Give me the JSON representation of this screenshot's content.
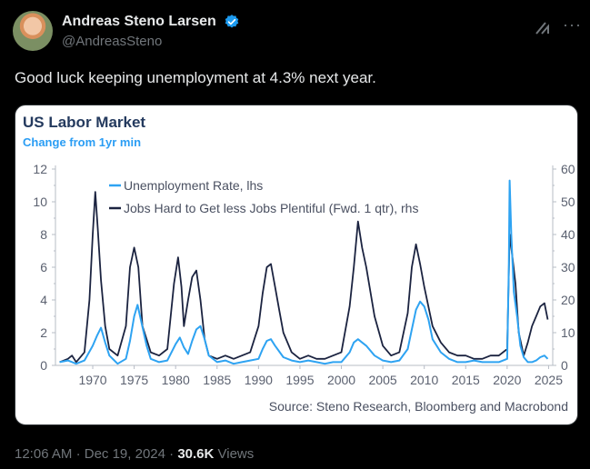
{
  "author": {
    "name": "Andreas Steno Larsen",
    "handle": "@AndreasSteno"
  },
  "tweet": {
    "text": "Good luck keeping unemployment at 4.3% next year."
  },
  "meta": {
    "time": "12:06 AM",
    "date": "Dec 19, 2024",
    "views_count": "30.6K",
    "views_label": "Views"
  },
  "icons": {
    "verified": "verified-badge-icon",
    "grok": "grok-icon",
    "more": "more-icon"
  },
  "colors": {
    "accent": "#1d9bf0",
    "unemployment": "#2ea3f2",
    "jobs": "#1b2340"
  },
  "chart_data": {
    "type": "line",
    "title": "US Labor Market",
    "subtitle": "Change from 1yr min",
    "source": "Source: Steno Research, Bloomberg and Macrobond",
    "x_ticks": [
      "1970",
      "1975",
      "1980",
      "1985",
      "1990",
      "1995",
      "2000",
      "2005",
      "2010",
      "2015",
      "2020",
      "2025"
    ],
    "xlim": [
      1965.5,
      2025.5
    ],
    "ylim_left": [
      0,
      12
    ],
    "ylim_right": [
      0,
      60
    ],
    "left_ticks": [
      "0",
      "2",
      "4",
      "6",
      "8",
      "10",
      "12"
    ],
    "right_ticks": [
      "0",
      "10",
      "20",
      "30",
      "40",
      "50",
      "60"
    ],
    "grid": false,
    "legend_position": "top-left",
    "series": [
      {
        "name": "Unemployment Rate, lhs",
        "axis": "left",
        "points": [
          [
            1966.0,
            0.2
          ],
          [
            1967.0,
            0.3
          ],
          [
            1968.0,
            0.1
          ],
          [
            1969.0,
            0.3
          ],
          [
            1970.0,
            1.2
          ],
          [
            1970.5,
            1.8
          ],
          [
            1971.0,
            2.3
          ],
          [
            1971.5,
            1.4
          ],
          [
            1972.0,
            0.6
          ],
          [
            1973.0,
            0.1
          ],
          [
            1974.0,
            0.4
          ],
          [
            1974.5,
            1.5
          ],
          [
            1975.0,
            3.0
          ],
          [
            1975.4,
            3.7
          ],
          [
            1975.8,
            2.8
          ],
          [
            1976.5,
            1.2
          ],
          [
            1977.0,
            0.4
          ],
          [
            1978.0,
            0.2
          ],
          [
            1979.0,
            0.3
          ],
          [
            1980.0,
            1.3
          ],
          [
            1980.5,
            1.7
          ],
          [
            1981.0,
            1.1
          ],
          [
            1981.5,
            0.7
          ],
          [
            1982.0,
            1.5
          ],
          [
            1982.5,
            2.2
          ],
          [
            1983.0,
            2.4
          ],
          [
            1983.5,
            1.6
          ],
          [
            1984.0,
            0.6
          ],
          [
            1985.0,
            0.2
          ],
          [
            1986.0,
            0.3
          ],
          [
            1987.0,
            0.1
          ],
          [
            1988.0,
            0.2
          ],
          [
            1989.0,
            0.3
          ],
          [
            1990.0,
            0.4
          ],
          [
            1990.5,
            1.0
          ],
          [
            1991.0,
            1.5
          ],
          [
            1991.5,
            1.6
          ],
          [
            1992.0,
            1.2
          ],
          [
            1993.0,
            0.5
          ],
          [
            1994.0,
            0.3
          ],
          [
            1995.0,
            0.2
          ],
          [
            1996.0,
            0.3
          ],
          [
            1997.0,
            0.2
          ],
          [
            1998.0,
            0.1
          ],
          [
            1999.0,
            0.2
          ],
          [
            2000.0,
            0.2
          ],
          [
            2001.0,
            0.8
          ],
          [
            2001.5,
            1.4
          ],
          [
            2002.0,
            1.6
          ],
          [
            2002.5,
            1.4
          ],
          [
            2003.0,
            1.2
          ],
          [
            2004.0,
            0.6
          ],
          [
            2005.0,
            0.3
          ],
          [
            2006.0,
            0.2
          ],
          [
            2007.0,
            0.3
          ],
          [
            2008.0,
            1.0
          ],
          [
            2008.5,
            2.2
          ],
          [
            2009.0,
            3.4
          ],
          [
            2009.5,
            3.9
          ],
          [
            2010.0,
            3.6
          ],
          [
            2010.5,
            2.8
          ],
          [
            2011.0,
            1.6
          ],
          [
            2012.0,
            0.8
          ],
          [
            2013.0,
            0.4
          ],
          [
            2014.0,
            0.2
          ],
          [
            2015.0,
            0.2
          ],
          [
            2016.0,
            0.3
          ],
          [
            2017.0,
            0.2
          ],
          [
            2018.0,
            0.2
          ],
          [
            2019.0,
            0.2
          ],
          [
            2020.0,
            0.4
          ],
          [
            2020.2,
            6.0
          ],
          [
            2020.3,
            11.3
          ],
          [
            2020.5,
            8.0
          ],
          [
            2020.8,
            4.5
          ],
          [
            2021.2,
            3.0
          ],
          [
            2021.6,
            1.2
          ],
          [
            2022.0,
            0.5
          ],
          [
            2022.5,
            0.2
          ],
          [
            2023.0,
            0.2
          ],
          [
            2023.5,
            0.3
          ],
          [
            2024.0,
            0.5
          ],
          [
            2024.5,
            0.6
          ],
          [
            2024.9,
            0.4
          ]
        ]
      },
      {
        "name": "Jobs Hard to Get less Jobs Plentiful (Fwd. 1 qtr), rhs",
        "axis": "right",
        "points": [
          [
            1966.0,
            1.0
          ],
          [
            1967.0,
            2.0
          ],
          [
            1967.5,
            3.0
          ],
          [
            1968.0,
            1.0
          ],
          [
            1969.0,
            4.0
          ],
          [
            1969.6,
            20.0
          ],
          [
            1970.0,
            40.0
          ],
          [
            1970.3,
            53.0
          ],
          [
            1970.6,
            42.0
          ],
          [
            1971.0,
            26.0
          ],
          [
            1971.5,
            12.0
          ],
          [
            1972.0,
            5.0
          ],
          [
            1973.0,
            3.0
          ],
          [
            1974.0,
            12.0
          ],
          [
            1974.5,
            30.0
          ],
          [
            1975.0,
            36.0
          ],
          [
            1975.5,
            30.0
          ],
          [
            1976.0,
            12.0
          ],
          [
            1977.0,
            4.0
          ],
          [
            1978.0,
            3.0
          ],
          [
            1979.0,
            5.0
          ],
          [
            1979.8,
            25.0
          ],
          [
            1980.3,
            33.0
          ],
          [
            1980.7,
            24.0
          ],
          [
            1981.0,
            12.0
          ],
          [
            1981.5,
            20.0
          ],
          [
            1982.0,
            27.0
          ],
          [
            1982.5,
            29.0
          ],
          [
            1983.0,
            20.0
          ],
          [
            1983.5,
            8.0
          ],
          [
            1984.0,
            3.0
          ],
          [
            1985.0,
            2.0
          ],
          [
            1986.0,
            3.0
          ],
          [
            1987.0,
            2.0
          ],
          [
            1988.0,
            3.0
          ],
          [
            1989.0,
            4.0
          ],
          [
            1990.0,
            12.0
          ],
          [
            1990.5,
            22.0
          ],
          [
            1991.0,
            30.0
          ],
          [
            1991.5,
            31.0
          ],
          [
            1992.0,
            24.0
          ],
          [
            1992.5,
            17.0
          ],
          [
            1993.0,
            10.0
          ],
          [
            1994.0,
            4.0
          ],
          [
            1995.0,
            2.0
          ],
          [
            1996.0,
            3.0
          ],
          [
            1997.0,
            2.0
          ],
          [
            1998.0,
            2.0
          ],
          [
            1999.0,
            3.0
          ],
          [
            2000.0,
            4.0
          ],
          [
            2001.0,
            18.0
          ],
          [
            2001.5,
            30.0
          ],
          [
            2002.0,
            44.0
          ],
          [
            2002.5,
            36.0
          ],
          [
            2003.0,
            30.0
          ],
          [
            2004.0,
            15.0
          ],
          [
            2005.0,
            6.0
          ],
          [
            2006.0,
            3.0
          ],
          [
            2007.0,
            4.0
          ],
          [
            2008.0,
            16.0
          ],
          [
            2008.5,
            30.0
          ],
          [
            2009.0,
            37.0
          ],
          [
            2009.5,
            31.0
          ],
          [
            2010.0,
            24.0
          ],
          [
            2011.0,
            12.0
          ],
          [
            2012.0,
            7.0
          ],
          [
            2013.0,
            4.0
          ],
          [
            2014.0,
            3.0
          ],
          [
            2015.0,
            3.0
          ],
          [
            2016.0,
            2.0
          ],
          [
            2017.0,
            2.0
          ],
          [
            2018.0,
            3.0
          ],
          [
            2019.0,
            3.0
          ],
          [
            2020.0,
            5.0
          ],
          [
            2020.3,
            40.0
          ],
          [
            2020.6,
            34.0
          ],
          [
            2021.0,
            25.0
          ],
          [
            2021.4,
            10.0
          ],
          [
            2022.0,
            3.0
          ],
          [
            2022.5,
            7.0
          ],
          [
            2023.0,
            12.0
          ],
          [
            2023.5,
            15.0
          ],
          [
            2024.0,
            18.0
          ],
          [
            2024.5,
            19.0
          ],
          [
            2024.9,
            14.0
          ]
        ]
      }
    ]
  }
}
